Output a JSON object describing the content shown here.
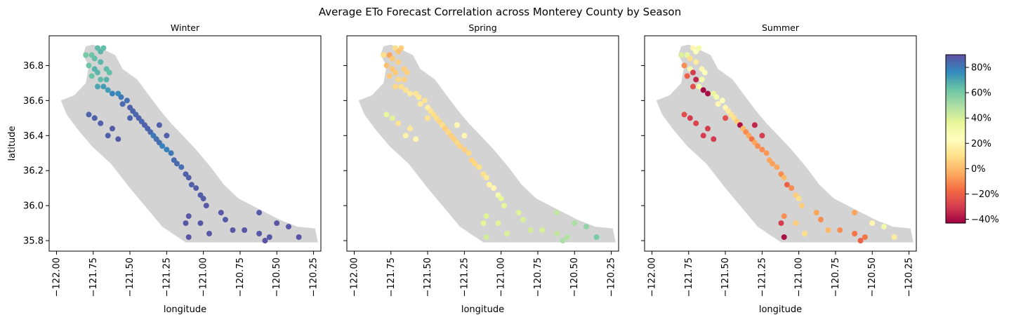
{
  "chart_data": {
    "type": "scatter",
    "title": "Average ETo Forecast Correlation across Monterey County by Season",
    "xlabel": "longitude",
    "ylabel": "latitude",
    "xlim": [
      -122.05,
      -120.2
    ],
    "ylim": [
      35.74,
      36.97
    ],
    "x_ticks": [
      -122.0,
      -121.75,
      -121.5,
      -121.25,
      -121.0,
      -120.75,
      -120.5,
      -120.25
    ],
    "x_tick_labels": [
      "−122.00",
      "−121.75",
      "−121.50",
      "−121.25",
      "−121.00",
      "−120.75",
      "−120.50",
      "−120.25"
    ],
    "y_ticks": [
      35.8,
      36.0,
      36.2,
      36.4,
      36.6,
      36.8
    ],
    "y_tick_labels": [
      "35.8",
      "36.0",
      "36.2",
      "36.4",
      "36.6",
      "36.8"
    ],
    "background_shape": "Monterey County outline (light gray)",
    "colormap": "Spectral",
    "colorbar": {
      "range": [
        -0.43,
        0.9
      ],
      "ticks": [
        -0.4,
        -0.2,
        0.0,
        0.2,
        0.4,
        0.6,
        0.8
      ],
      "tick_labels": [
        "−40%",
        "−20%",
        "0%",
        "20%",
        "40%",
        "60%",
        "80%"
      ],
      "position": "right"
    },
    "panels": [
      {
        "subtitle": "Winter",
        "points": [
          [
            -121.72,
            36.9,
            0.65
          ],
          [
            -121.7,
            36.88,
            0.66
          ],
          [
            -121.68,
            36.9,
            0.64
          ],
          [
            -121.76,
            36.86,
            0.62
          ],
          [
            -121.8,
            36.86,
            0.6
          ],
          [
            -121.74,
            36.84,
            0.64
          ],
          [
            -121.7,
            36.82,
            0.66
          ],
          [
            -121.78,
            36.8,
            0.62
          ],
          [
            -121.74,
            36.78,
            0.67
          ],
          [
            -121.66,
            36.78,
            0.65
          ],
          [
            -121.72,
            36.76,
            0.66
          ],
          [
            -121.64,
            36.76,
            0.64
          ],
          [
            -121.7,
            36.72,
            0.65
          ],
          [
            -121.76,
            36.74,
            0.63
          ],
          [
            -121.66,
            36.72,
            0.67
          ],
          [
            -121.72,
            36.68,
            0.7
          ],
          [
            -121.68,
            36.68,
            0.72
          ],
          [
            -121.65,
            36.66,
            0.72
          ],
          [
            -121.62,
            36.64,
            0.78
          ],
          [
            -121.58,
            36.64,
            0.76
          ],
          [
            -121.56,
            36.62,
            0.8
          ],
          [
            -121.52,
            36.6,
            0.82
          ],
          [
            -121.55,
            36.58,
            0.84
          ],
          [
            -121.5,
            36.56,
            0.86
          ],
          [
            -121.48,
            36.54,
            0.85
          ],
          [
            -121.46,
            36.52,
            0.84
          ],
          [
            -121.44,
            36.5,
            0.86
          ],
          [
            -121.5,
            36.5,
            0.85
          ],
          [
            -121.42,
            36.48,
            0.84
          ],
          [
            -121.4,
            36.46,
            0.86
          ],
          [
            -121.38,
            36.44,
            0.85
          ],
          [
            -121.36,
            36.42,
            0.84
          ],
          [
            -121.34,
            36.4,
            0.8
          ],
          [
            -121.32,
            36.38,
            0.82
          ],
          [
            -121.3,
            36.36,
            0.82
          ],
          [
            -121.28,
            36.34,
            0.78
          ],
          [
            -121.25,
            36.32,
            0.78
          ],
          [
            -121.22,
            36.3,
            0.8
          ],
          [
            -121.2,
            36.26,
            0.84
          ],
          [
            -121.18,
            36.24,
            0.84
          ],
          [
            -121.15,
            36.22,
            0.82
          ],
          [
            -121.12,
            36.18,
            0.86
          ],
          [
            -121.1,
            36.16,
            0.86
          ],
          [
            -121.08,
            36.12,
            0.86
          ],
          [
            -121.05,
            36.1,
            0.87
          ],
          [
            -121.02,
            36.06,
            0.87
          ],
          [
            -121.0,
            36.04,
            0.87
          ],
          [
            -120.98,
            36.0,
            0.88
          ],
          [
            -121.78,
            36.52,
            0.85
          ],
          [
            -121.74,
            36.5,
            0.86
          ],
          [
            -121.7,
            36.47,
            0.86
          ],
          [
            -121.62,
            36.44,
            0.87
          ],
          [
            -121.58,
            36.38,
            0.87
          ],
          [
            -121.65,
            36.4,
            0.86
          ],
          [
            -121.3,
            36.46,
            0.86
          ],
          [
            -121.25,
            36.4,
            0.86
          ],
          [
            -120.88,
            35.96,
            0.88
          ],
          [
            -120.85,
            35.92,
            0.88
          ],
          [
            -120.8,
            35.86,
            0.88
          ],
          [
            -120.72,
            35.86,
            0.88
          ],
          [
            -120.62,
            35.84,
            0.88
          ],
          [
            -120.58,
            35.8,
            0.89
          ],
          [
            -120.55,
            35.82,
            0.88
          ],
          [
            -120.5,
            35.9,
            0.89
          ],
          [
            -120.42,
            35.88,
            0.88
          ],
          [
            -120.35,
            35.82,
            0.89
          ],
          [
            -120.62,
            35.96,
            0.88
          ],
          [
            -121.1,
            35.82,
            0.89
          ],
          [
            -121.1,
            35.94,
            0.88
          ],
          [
            -121.12,
            35.9,
            0.88
          ],
          [
            -121.02,
            35.9,
            0.88
          ],
          [
            -120.96,
            35.84,
            0.88
          ]
        ]
      },
      {
        "subtitle": "Spring",
        "points": [
          [
            -121.72,
            36.9,
            0.1
          ],
          [
            -121.7,
            36.88,
            0.02
          ],
          [
            -121.68,
            36.9,
            0.05
          ],
          [
            -121.76,
            36.86,
            -0.05
          ],
          [
            -121.8,
            36.86,
            0.1
          ],
          [
            -121.74,
            36.84,
            0.04
          ],
          [
            -121.7,
            36.82,
            0.06
          ],
          [
            -121.78,
            36.8,
            0.02
          ],
          [
            -121.74,
            36.78,
            0.03
          ],
          [
            -121.66,
            36.78,
            0.05
          ],
          [
            -121.72,
            36.76,
            0.04
          ],
          [
            -121.64,
            36.76,
            0.06
          ],
          [
            -121.7,
            36.72,
            0.08
          ],
          [
            -121.76,
            36.74,
            0.04
          ],
          [
            -121.66,
            36.72,
            0.06
          ],
          [
            -121.72,
            36.68,
            0.08
          ],
          [
            -121.68,
            36.68,
            0.1
          ],
          [
            -121.65,
            36.66,
            0.12
          ],
          [
            -121.62,
            36.64,
            0.14
          ],
          [
            -121.58,
            36.64,
            0.12
          ],
          [
            -121.56,
            36.62,
            0.14
          ],
          [
            -121.52,
            36.6,
            0.12
          ],
          [
            -121.55,
            36.58,
            0.14
          ],
          [
            -121.5,
            36.56,
            0.16
          ],
          [
            -121.48,
            36.54,
            0.12
          ],
          [
            -121.46,
            36.52,
            0.1
          ],
          [
            -121.44,
            36.5,
            0.1
          ],
          [
            -121.5,
            36.5,
            0.12
          ],
          [
            -121.42,
            36.48,
            0.08
          ],
          [
            -121.4,
            36.46,
            0.1
          ],
          [
            -121.38,
            36.44,
            0.06
          ],
          [
            -121.36,
            36.42,
            0.08
          ],
          [
            -121.34,
            36.4,
            0.06
          ],
          [
            -121.32,
            36.38,
            0.06
          ],
          [
            -121.3,
            36.36,
            0.08
          ],
          [
            -121.28,
            36.34,
            0.07
          ],
          [
            -121.25,
            36.32,
            0.06
          ],
          [
            -121.22,
            36.3,
            0.08
          ],
          [
            -121.2,
            36.26,
            0.07
          ],
          [
            -121.18,
            36.24,
            0.08
          ],
          [
            -121.15,
            36.22,
            0.1
          ],
          [
            -121.12,
            36.18,
            0.1
          ],
          [
            -121.1,
            36.16,
            0.14
          ],
          [
            -121.08,
            36.12,
            0.18
          ],
          [
            -121.05,
            36.1,
            0.2
          ],
          [
            -121.02,
            36.06,
            0.3
          ],
          [
            -121.0,
            36.04,
            0.36
          ],
          [
            -120.98,
            36.0,
            0.36
          ],
          [
            -121.78,
            36.52,
            0.35
          ],
          [
            -121.74,
            36.5,
            0.38
          ],
          [
            -121.7,
            36.47,
            0.12
          ],
          [
            -121.62,
            36.44,
            0.14
          ],
          [
            -121.58,
            36.38,
            0.2
          ],
          [
            -121.65,
            36.4,
            0.18
          ],
          [
            -121.3,
            36.46,
            0.2
          ],
          [
            -121.25,
            36.4,
            0.2
          ],
          [
            -120.88,
            35.96,
            0.38
          ],
          [
            -120.85,
            35.92,
            0.4
          ],
          [
            -120.8,
            35.86,
            0.42
          ],
          [
            -120.72,
            35.86,
            0.4
          ],
          [
            -120.62,
            35.84,
            0.45
          ],
          [
            -120.58,
            35.8,
            0.5
          ],
          [
            -120.55,
            35.82,
            0.48
          ],
          [
            -120.5,
            35.9,
            0.5
          ],
          [
            -120.42,
            35.88,
            0.55
          ],
          [
            -120.35,
            35.82,
            0.6
          ],
          [
            -120.62,
            35.96,
            0.45
          ],
          [
            -121.1,
            35.82,
            0.42
          ],
          [
            -121.1,
            35.94,
            0.38
          ],
          [
            -121.12,
            35.9,
            0.36
          ],
          [
            -121.02,
            35.9,
            0.38
          ],
          [
            -120.96,
            35.84,
            0.4
          ]
        ]
      },
      {
        "subtitle": "Summer",
        "points": [
          [
            -121.72,
            36.9,
            0.2
          ],
          [
            -121.7,
            36.88,
            0.25
          ],
          [
            -121.68,
            36.9,
            0.3
          ],
          [
            -121.76,
            36.86,
            0.35
          ],
          [
            -121.8,
            36.86,
            0.4
          ],
          [
            -121.74,
            36.84,
            0.1
          ],
          [
            -121.7,
            36.82,
            0.15
          ],
          [
            -121.78,
            36.8,
            -0.1
          ],
          [
            -121.74,
            36.78,
            0.3
          ],
          [
            -121.66,
            36.78,
            0.2
          ],
          [
            -121.72,
            36.76,
            -0.3
          ],
          [
            -121.64,
            36.76,
            0.25
          ],
          [
            -121.7,
            36.72,
            -0.35
          ],
          [
            -121.76,
            36.74,
            -0.2
          ],
          [
            -121.66,
            36.72,
            0.3
          ],
          [
            -121.72,
            36.68,
            -0.25
          ],
          [
            -121.68,
            36.68,
            0.3
          ],
          [
            -121.65,
            36.66,
            -0.42
          ],
          [
            -121.62,
            36.64,
            -0.4
          ],
          [
            -121.58,
            36.64,
            0.35
          ],
          [
            -121.56,
            36.62,
            0.3
          ],
          [
            -121.52,
            36.6,
            0.25
          ],
          [
            -121.55,
            36.58,
            0.2
          ],
          [
            -121.5,
            36.56,
            0.2
          ],
          [
            -121.48,
            36.54,
            0.15
          ],
          [
            -121.46,
            36.52,
            0.12
          ],
          [
            -121.44,
            36.5,
            0.1
          ],
          [
            -121.5,
            36.5,
            -0.25
          ],
          [
            -121.42,
            36.48,
            0.05
          ],
          [
            -121.4,
            36.46,
            -0.4
          ],
          [
            -121.38,
            36.44,
            0.0
          ],
          [
            -121.36,
            36.42,
            -0.1
          ],
          [
            -121.34,
            36.4,
            -0.05
          ],
          [
            -121.32,
            36.38,
            -0.15
          ],
          [
            -121.3,
            36.36,
            -0.05
          ],
          [
            -121.28,
            36.34,
            -0.1
          ],
          [
            -121.25,
            36.32,
            -0.1
          ],
          [
            -121.22,
            36.3,
            -0.08
          ],
          [
            -121.2,
            36.26,
            -0.05
          ],
          [
            -121.18,
            36.24,
            -0.06
          ],
          [
            -121.15,
            36.22,
            -0.05
          ],
          [
            -121.12,
            36.18,
            -0.1
          ],
          [
            -121.1,
            36.16,
            0.0
          ],
          [
            -121.08,
            36.12,
            -0.2
          ],
          [
            -121.05,
            36.1,
            -0.1
          ],
          [
            -121.02,
            36.06,
            0.05
          ],
          [
            -121.0,
            36.04,
            0.1
          ],
          [
            -120.98,
            36.0,
            0.05
          ],
          [
            -121.78,
            36.52,
            -0.25
          ],
          [
            -121.74,
            36.5,
            -0.3
          ],
          [
            -121.7,
            36.47,
            -0.28
          ],
          [
            -121.62,
            36.44,
            -0.3
          ],
          [
            -121.58,
            36.38,
            -0.3
          ],
          [
            -121.65,
            36.4,
            -0.3
          ],
          [
            -121.3,
            36.46,
            -0.35
          ],
          [
            -121.25,
            36.4,
            -0.3
          ],
          [
            -120.88,
            35.96,
            -0.05
          ],
          [
            -120.85,
            35.92,
            -0.1
          ],
          [
            -120.8,
            35.86,
            0.0
          ],
          [
            -120.72,
            35.86,
            -0.1
          ],
          [
            -120.62,
            35.84,
            -0.15
          ],
          [
            -120.58,
            35.8,
            -0.2
          ],
          [
            -120.55,
            35.82,
            -0.15
          ],
          [
            -120.5,
            35.9,
            0.2
          ],
          [
            -120.42,
            35.88,
            0.3
          ],
          [
            -120.35,
            35.82,
            0.15
          ],
          [
            -120.62,
            35.96,
            -0.05
          ],
          [
            -121.1,
            35.82,
            -0.4
          ],
          [
            -121.1,
            35.94,
            -0.1
          ],
          [
            -121.12,
            35.9,
            -0.3
          ],
          [
            -121.02,
            35.9,
            0.05
          ],
          [
            -120.96,
            35.84,
            0.1
          ]
        ]
      }
    ]
  }
}
